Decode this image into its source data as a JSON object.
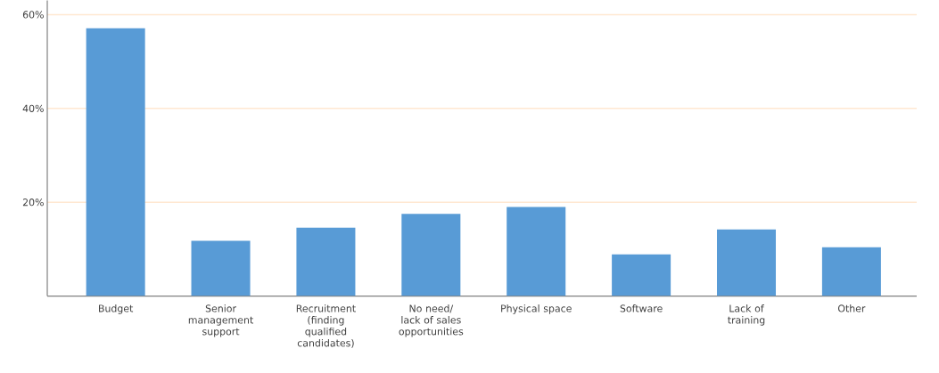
{
  "chart_data": {
    "type": "bar",
    "categories": [
      "Budget",
      "Senior management support",
      "Recruitment (finding qualified candidates)",
      "No need/ lack of sales opportunities",
      "Physical space",
      "Software",
      "Lack of training",
      "Other"
    ],
    "values": [
      57.1,
      11.8,
      14.6,
      17.5,
      19.0,
      8.9,
      14.2,
      10.4
    ],
    "color": "#589bd6",
    "ylim": [
      0,
      63
    ],
    "yticks": [
      {
        "value": 20,
        "label": "20%"
      },
      {
        "value": 40,
        "label": "40%"
      },
      {
        "value": 60,
        "label": "60%"
      }
    ],
    "grid": "y"
  }
}
